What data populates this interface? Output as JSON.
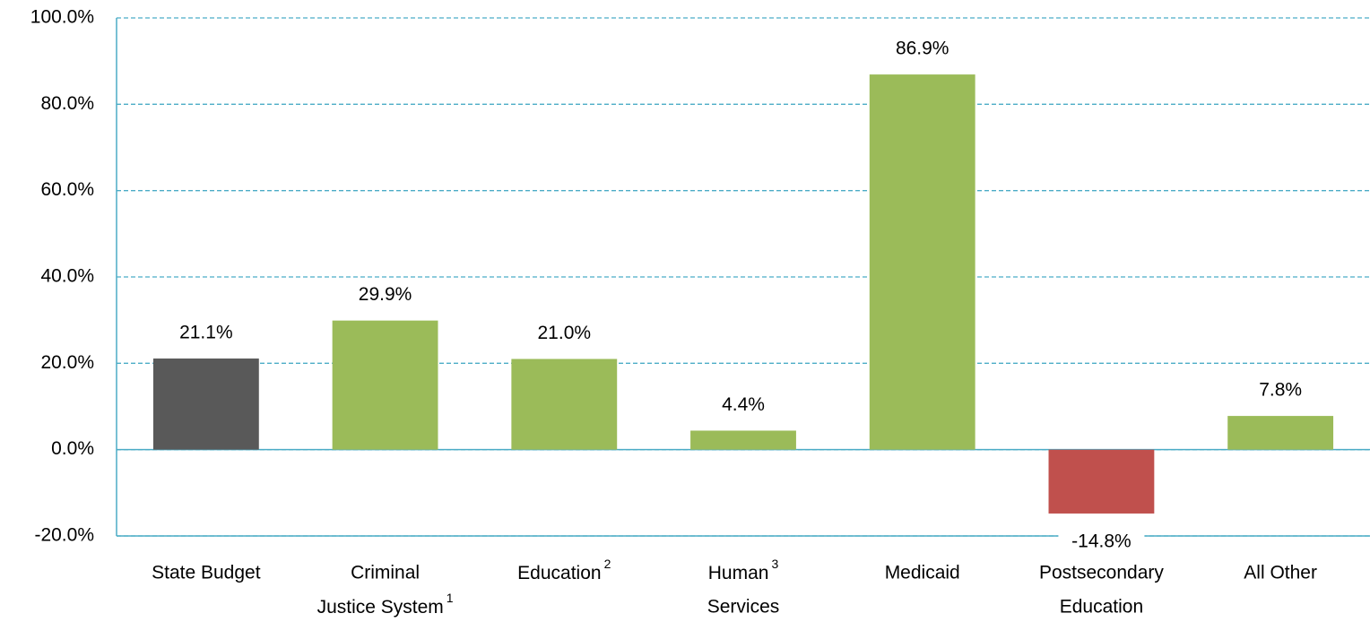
{
  "chart_data": {
    "type": "bar",
    "categories": [
      [
        "State Budget"
      ],
      [
        "Criminal",
        {
          "text": "Justice System",
          "sup": "1"
        }
      ],
      [
        {
          "text": "Education",
          "sup": "2"
        }
      ],
      [
        {
          "text": "Human",
          "sup": "3"
        },
        "Services"
      ],
      [
        "Medicaid"
      ],
      [
        "Postsecondary",
        "Education"
      ],
      [
        "All Other"
      ]
    ],
    "values": [
      21.1,
      29.9,
      21.0,
      4.4,
      86.9,
      -14.8,
      7.8
    ],
    "value_labels": [
      "21.1%",
      "29.9%",
      "21.0%",
      "4.4%",
      "86.9%",
      "-14.8%",
      "7.8%"
    ],
    "colors": [
      "#595959",
      "#9bbb59",
      "#9bbb59",
      "#9bbb59",
      "#9bbb59",
      "#c0504d",
      "#9bbb59"
    ],
    "ylim": [
      -20,
      100
    ],
    "yticks": [
      {
        "value": -20,
        "label": "-20.0%"
      },
      {
        "value": 0,
        "label": "0.0%"
      },
      {
        "value": 20,
        "label": "20.0%"
      },
      {
        "value": 40,
        "label": "40.0%"
      },
      {
        "value": 60,
        "label": "60.0%"
      },
      {
        "value": 80,
        "label": "80.0%"
      },
      {
        "value": 100,
        "label": "100.0%"
      }
    ],
    "grid": true
  }
}
